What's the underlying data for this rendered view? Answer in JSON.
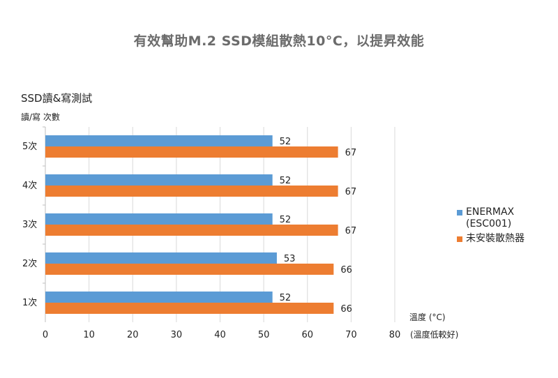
{
  "header": {
    "title": "有效幫助M.2 SSD模組散熱10°C，以提昇效能"
  },
  "chart_data": {
    "type": "bar",
    "orientation": "horizontal",
    "title": "SSD讀&寫測試",
    "ylabel": "讀/寫 次數",
    "xlabel": "溫度 (°C)",
    "xlabel_note": "(溫度低較好)",
    "categories": [
      "1次",
      "2次",
      "3次",
      "4次",
      "5次"
    ],
    "series": [
      {
        "name": "ENERMAX\n(ESC001)",
        "color": "#5b9bd5",
        "values": [
          52,
          53,
          52,
          52,
          52
        ]
      },
      {
        "name": "未安裝散熱器",
        "color": "#ed7d31",
        "values": [
          66,
          66,
          67,
          67,
          67
        ]
      }
    ],
    "xlim": [
      0,
      80
    ],
    "xticks": [
      "0",
      "10",
      "20",
      "30",
      "40",
      "50",
      "60",
      "70",
      "80"
    ],
    "grid": true,
    "legend_position": "right"
  }
}
